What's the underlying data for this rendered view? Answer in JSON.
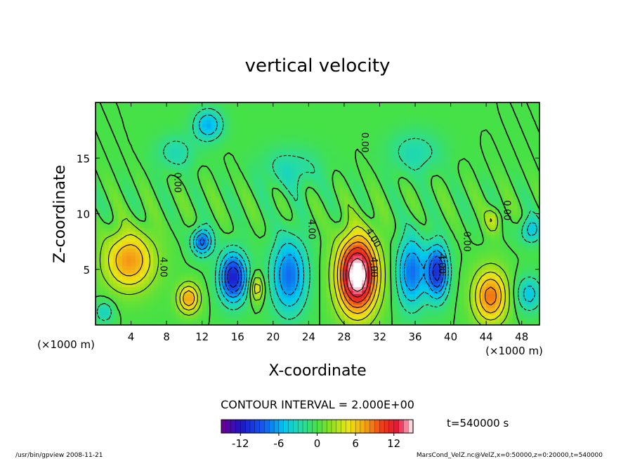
{
  "chart_data": {
    "type": "heatmap",
    "title": "vertical velocity",
    "xlabel": "X-coordinate",
    "ylabel": "Z-coordinate",
    "x_unit_label": "(×1000 m)",
    "y_unit_label": "(×1000 m)",
    "xlim": [
      0,
      50
    ],
    "ylim": [
      0,
      20
    ],
    "x_ticks": [
      4,
      8,
      12,
      16,
      20,
      24,
      28,
      32,
      36,
      40,
      44,
      48
    ],
    "y_ticks": [
      5,
      10,
      15
    ],
    "contour_interval_label": "CONTOUR INTERVAL = 2.000E+00",
    "contour_labels": [
      {
        "text": "4.00",
        "x": 7.3,
        "y": 5.2,
        "rotate": 90
      },
      {
        "text": "4.00",
        "x": 24.0,
        "y": 8.6,
        "rotate": 90
      },
      {
        "text": "4.00",
        "x": 31.0,
        "y": 7.7,
        "rotate": 60
      },
      {
        "text": "4.00",
        "x": 31.0,
        "y": 5.2,
        "rotate": 90
      },
      {
        "text": "4.00",
        "x": 38.7,
        "y": 5.5,
        "rotate": 90
      },
      {
        "text": "0.00",
        "x": 41.5,
        "y": 7.5,
        "rotate": 90
      },
      {
        "text": "0.00",
        "x": 46.0,
        "y": 10.3,
        "rotate": 90
      },
      {
        "text": "0.00",
        "x": 30.0,
        "y": 16.4,
        "rotate": 90
      },
      {
        "text": "0.00",
        "x": 8.9,
        "y": 12.8,
        "rotate": 90
      }
    ],
    "value_range": [
      -15,
      15
    ],
    "colorbar_ticks": [
      -12,
      -6,
      0,
      6,
      12
    ],
    "time_label": "t=540000 s",
    "features": [
      {
        "kind": "updraft",
        "x": 29.5,
        "z": 4.5,
        "sx": 2.2,
        "sz": 3.4,
        "w": 17
      },
      {
        "kind": "updraft",
        "x": 3.8,
        "z": 5.8,
        "sx": 2.8,
        "sz": 2.6,
        "w": 8
      },
      {
        "kind": "updraft",
        "x": 10.5,
        "z": 2.4,
        "sx": 1.2,
        "sz": 1.3,
        "w": 8
      },
      {
        "kind": "updraft",
        "x": 18.2,
        "z": 3.3,
        "sx": 0.7,
        "sz": 1.2,
        "w": 6
      },
      {
        "kind": "updraft",
        "x": 44.5,
        "z": 2.6,
        "sx": 1.9,
        "sz": 2.4,
        "w": 9
      },
      {
        "kind": "updraft",
        "x": 44.8,
        "z": 9.5,
        "sx": 0.8,
        "sz": 1.1,
        "w": 4
      },
      {
        "kind": "downdraft",
        "x": 15.5,
        "z": 4.3,
        "sx": 1.5,
        "sz": 2.2,
        "w": -12
      },
      {
        "kind": "downdraft",
        "x": 12.0,
        "z": 7.5,
        "sx": 1.1,
        "sz": 1.2,
        "w": -9
      },
      {
        "kind": "downdraft",
        "x": 21.8,
        "z": 4.5,
        "sx": 2.0,
        "sz": 3.4,
        "w": -8
      },
      {
        "kind": "downdraft",
        "x": 35.6,
        "z": 4.8,
        "sx": 1.6,
        "sz": 3.2,
        "w": -8
      },
      {
        "kind": "downdraft",
        "x": 38.5,
        "z": 4.8,
        "sx": 1.2,
        "sz": 2.4,
        "w": -11
      },
      {
        "kind": "downdraft",
        "x": 48.8,
        "z": 2.8,
        "sx": 1.5,
        "sz": 1.6,
        "w": -5
      },
      {
        "kind": "downdraft",
        "x": 49.0,
        "z": 8.5,
        "sx": 1.2,
        "sz": 1.2,
        "w": -5
      },
      {
        "kind": "downdraft",
        "x": 12.7,
        "z": 18.0,
        "sx": 1.6,
        "sz": 1.4,
        "w": -6
      },
      {
        "kind": "downdraft",
        "x": 9.0,
        "z": 15.5,
        "sx": 2.2,
        "sz": 1.6,
        "w": -3
      },
      {
        "kind": "downdraft",
        "x": 22.0,
        "z": 14.0,
        "sx": 3.5,
        "sz": 2.0,
        "w": -3
      },
      {
        "kind": "downdraft",
        "x": 36.0,
        "z": 15.5,
        "sx": 3.0,
        "sz": 2.0,
        "w": -3
      },
      {
        "kind": "downdraft",
        "x": 1.0,
        "z": 1.2,
        "sx": 1.0,
        "sz": 1.0,
        "w": -4
      }
    ]
  },
  "footer": {
    "program": "/usr/bin/gpview   2008-11-21",
    "source": "MarsCond_VelZ.nc@VelZ,x=0:50000,z=0:20000,t=540000"
  }
}
